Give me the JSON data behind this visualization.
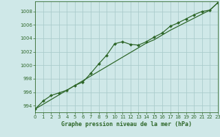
{
  "title": "Graphe pression niveau de la mer (hPa)",
  "background_color": "#cfe8e8",
  "grid_color": "#aacccc",
  "line_color": "#2d6628",
  "marker_color": "#2d6628",
  "x_values": [
    0,
    1,
    2,
    3,
    4,
    5,
    6,
    7,
    8,
    9,
    10,
    11,
    12,
    13,
    14,
    15,
    16,
    17,
    18,
    19,
    20,
    21,
    22,
    23
  ],
  "y_main": [
    993.5,
    994.7,
    995.5,
    995.9,
    996.3,
    997.0,
    997.5,
    998.8,
    1000.2,
    1001.5,
    1003.2,
    1003.5,
    1003.1,
    1003.0,
    1003.5,
    1004.2,
    1004.8,
    1005.8,
    1006.3,
    1006.9,
    1007.5,
    1008.0,
    1008.2,
    1009.3
  ],
  "y_trend": [
    993.5,
    994.2,
    994.9,
    995.6,
    996.3,
    997.0,
    997.7,
    998.4,
    999.1,
    999.8,
    1000.5,
    1001.2,
    1001.9,
    1002.6,
    1003.3,
    1003.8,
    1004.5,
    1005.2,
    1005.8,
    1006.4,
    1007.0,
    1007.6,
    1008.2,
    1009.3
  ],
  "ylim": [
    993.0,
    1009.5
  ],
  "xlim": [
    0,
    23
  ],
  "yticks": [
    994,
    996,
    998,
    1000,
    1002,
    1004,
    1006,
    1008
  ],
  "xticks": [
    0,
    1,
    2,
    3,
    4,
    5,
    6,
    7,
    8,
    9,
    10,
    11,
    12,
    13,
    14,
    15,
    16,
    17,
    18,
    19,
    20,
    21,
    22,
    23
  ]
}
